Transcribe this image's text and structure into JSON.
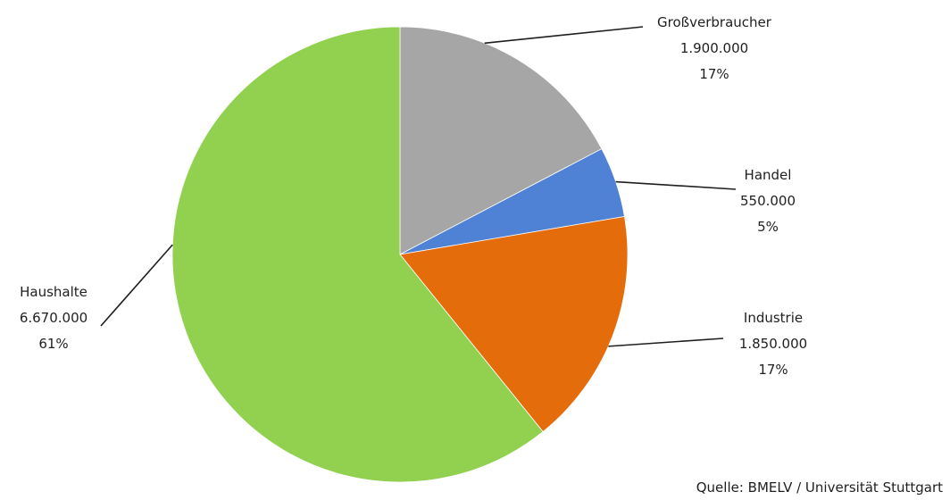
{
  "chart_data": {
    "type": "pie",
    "title": "",
    "start_angle_deg": 90,
    "direction": "clockwise",
    "slices": [
      {
        "name": "Großverbraucher",
        "value": 1900000,
        "value_label": "1.900.000",
        "percent_label": "17%",
        "color": "#a6a6a6"
      },
      {
        "name": "Handel",
        "value": 550000,
        "value_label": "550.000",
        "percent_label": "5%",
        "color": "#4f81d4"
      },
      {
        "name": "Industrie",
        "value": 1850000,
        "value_label": "1.850.000",
        "percent_label": "17%",
        "color": "#e46c0a"
      },
      {
        "name": "Haushalte",
        "value": 6670000,
        "value_label": "6.670.000",
        "percent_label": "61%",
        "color": "#92d050"
      }
    ]
  },
  "source": "Quelle: BMELV / Universität Stuttgart"
}
